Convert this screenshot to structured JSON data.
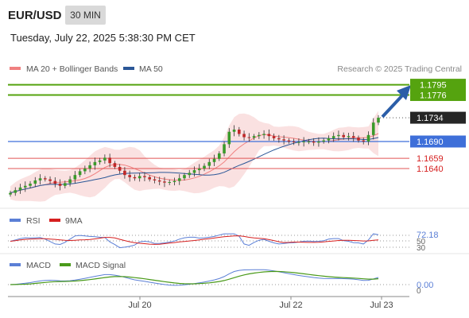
{
  "header": {
    "symbol": "EUR/USD",
    "timeframe": "30 MIN",
    "datetime": "Tuesday, July 22, 2025 5:38:30 PM CET"
  },
  "main_legend": [
    {
      "label": "MA 20 + Bollinger Bands",
      "color": "#f08080"
    },
    {
      "label": "MA 50",
      "color": "#2b5797"
    }
  ],
  "credit": "Research © 2025 Trading Central",
  "rsi_legend": [
    {
      "label": "RSI",
      "color": "#5b7fd6"
    },
    {
      "label": "9MA",
      "color": "#d62020"
    }
  ],
  "macd_legend": [
    {
      "label": "MACD",
      "color": "#5b7fd6"
    },
    {
      "label": "MACD Signal",
      "color": "#4a9a1a"
    }
  ],
  "x_axis_labels": [
    "Jul 20",
    "Jul 22",
    "Jul 23"
  ],
  "colors": {
    "target": "#55a30f",
    "pivot": "#3e6fd9",
    "support": "#e05555",
    "current": "#262626",
    "arrow": "#2b5ea8",
    "candle_up": "#3a9a2a",
    "candle_down": "#c02828"
  },
  "chart_data": {
    "type": "candlestick",
    "price_levels": [
      {
        "value": 1.1795,
        "label": "1.1795",
        "kind": "target"
      },
      {
        "value": 1.1776,
        "label": "1.1776",
        "kind": "target"
      },
      {
        "value": 1.1734,
        "label": "1.1734",
        "kind": "current"
      },
      {
        "value": 1.169,
        "label": "1.1690",
        "kind": "pivot"
      },
      {
        "value": 1.1659,
        "label": "1.1659",
        "kind": "support"
      },
      {
        "value": 1.164,
        "label": "1.1640",
        "kind": "support"
      }
    ],
    "price_series": [
      1.1595,
      1.16,
      1.1605,
      1.1608,
      1.1612,
      1.1618,
      1.1622,
      1.162,
      1.1617,
      1.1612,
      1.1608,
      1.1613,
      1.162,
      1.1628,
      1.1635,
      1.164,
      1.1646,
      1.1652,
      1.1655,
      1.166,
      1.165,
      1.1643,
      1.1636,
      1.1628,
      1.1624,
      1.1622,
      1.1626,
      1.1624,
      1.162,
      1.1618,
      1.1616,
      1.1614,
      1.1615,
      1.1617,
      1.1622,
      1.1628,
      1.1632,
      1.1637,
      1.164,
      1.1645,
      1.1652,
      1.1658,
      1.1668,
      1.1685,
      1.1708,
      1.1712,
      1.1704,
      1.1698,
      1.1697,
      1.17,
      1.1702,
      1.1704,
      1.17,
      1.1696,
      1.1694,
      1.1692,
      1.169,
      1.1689,
      1.1689,
      1.169,
      1.169,
      1.1688,
      1.169,
      1.1692,
      1.1696,
      1.17,
      1.1702,
      1.1698,
      1.17,
      1.1697,
      1.1692,
      1.169,
      1.1702,
      1.1725,
      1.1734
    ],
    "rsi": {
      "label": "72.18",
      "levels": [
        70,
        50,
        30
      ]
    },
    "macd": {
      "label": "0.00",
      "zero_label": "0"
    }
  }
}
